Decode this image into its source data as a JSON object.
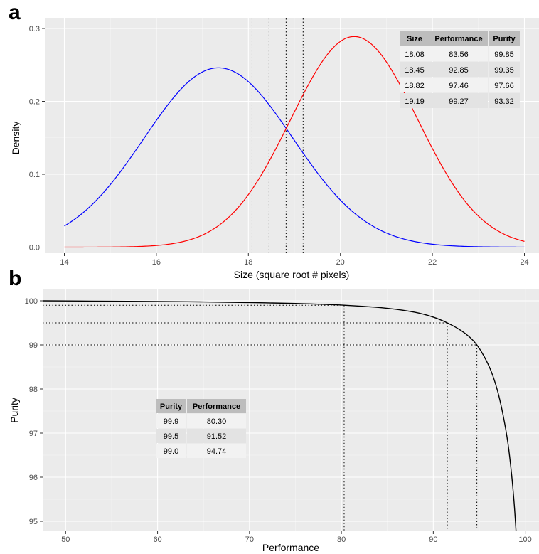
{
  "panels": {
    "a": {
      "letter": "a"
    },
    "b": {
      "letter": "b"
    }
  },
  "chart_data": [
    {
      "panel": "a",
      "type": "line",
      "xlabel": "Size (square root # pixels)",
      "ylabel": "Density",
      "xlim": [
        14,
        24
      ],
      "ylim": [
        0,
        0.3
      ],
      "xticks": [
        14,
        16,
        18,
        20,
        22,
        24
      ],
      "xtick_labels": [
        "14",
        "16",
        "18",
        "20",
        "22",
        "24"
      ],
      "yticks": [
        0,
        0.1,
        0.2,
        0.3
      ],
      "ytick_labels": [
        "0.0",
        "0.1",
        "0.2",
        "0.3"
      ],
      "grid": true,
      "background": "#ebebeb",
      "series": [
        {
          "color": "#0000ff",
          "distribution": "normal",
          "mean": 17.35,
          "sd": 1.62,
          "peak_density": 0.246
        },
        {
          "color": "#ff0000",
          "distribution": "normal",
          "mean": 20.3,
          "sd": 1.38,
          "peak_density": 0.289
        }
      ],
      "vlines": [
        18.08,
        18.45,
        18.82,
        19.19
      ],
      "vline_style": "dotted",
      "table": {
        "position": "top-right",
        "headers": [
          "Size",
          "Performance",
          "Purity"
        ],
        "rows": [
          [
            "18.08",
            "83.56",
            "99.85"
          ],
          [
            "18.45",
            "92.85",
            "99.35"
          ],
          [
            "18.82",
            "97.46",
            "97.66"
          ],
          [
            "19.19",
            "99.27",
            "93.32"
          ]
        ]
      }
    },
    {
      "panel": "b",
      "type": "line",
      "xlabel": "Performance",
      "ylabel": "Purity",
      "xlim": [
        47.5,
        101.5
      ],
      "ylim": [
        94.75,
        100.3
      ],
      "xticks": [
        50,
        60,
        70,
        80,
        90,
        100
      ],
      "xtick_labels": [
        "50",
        "60",
        "70",
        "80",
        "90",
        "100"
      ],
      "yticks": [
        95,
        96,
        97,
        98,
        99,
        100
      ],
      "ytick_labels": [
        "95",
        "96",
        "97",
        "98",
        "99",
        "100"
      ],
      "grid": true,
      "background": "#ebebeb",
      "series": [
        {
          "color": "#000000",
          "x": [
            47.5,
            55,
            60,
            65,
            70,
            75,
            80.3,
            85,
            88,
            90,
            91.52,
            93,
            94,
            94.74,
            95.5,
            96.3,
            97,
            97.6,
            98.1,
            98.5,
            98.8,
            99.0
          ],
          "y": [
            100.0,
            99.99,
            99.985,
            99.975,
            99.96,
            99.94,
            99.9,
            99.83,
            99.74,
            99.63,
            99.5,
            99.33,
            99.17,
            99.0,
            98.75,
            98.4,
            97.95,
            97.4,
            96.8,
            96.1,
            95.4,
            94.78
          ]
        }
      ],
      "guides": [
        {
          "performance": 80.3,
          "purity": 99.9
        },
        {
          "performance": 91.52,
          "purity": 99.5
        },
        {
          "performance": 94.74,
          "purity": 99.0
        }
      ],
      "guide_style": "dotted",
      "table": {
        "position": "center-left",
        "headers": [
          "Purity",
          "Performance"
        ],
        "rows": [
          [
            "99.9",
            "80.30"
          ],
          [
            "99.5",
            "91.52"
          ],
          [
            "99.0",
            "94.74"
          ]
        ]
      }
    }
  ]
}
